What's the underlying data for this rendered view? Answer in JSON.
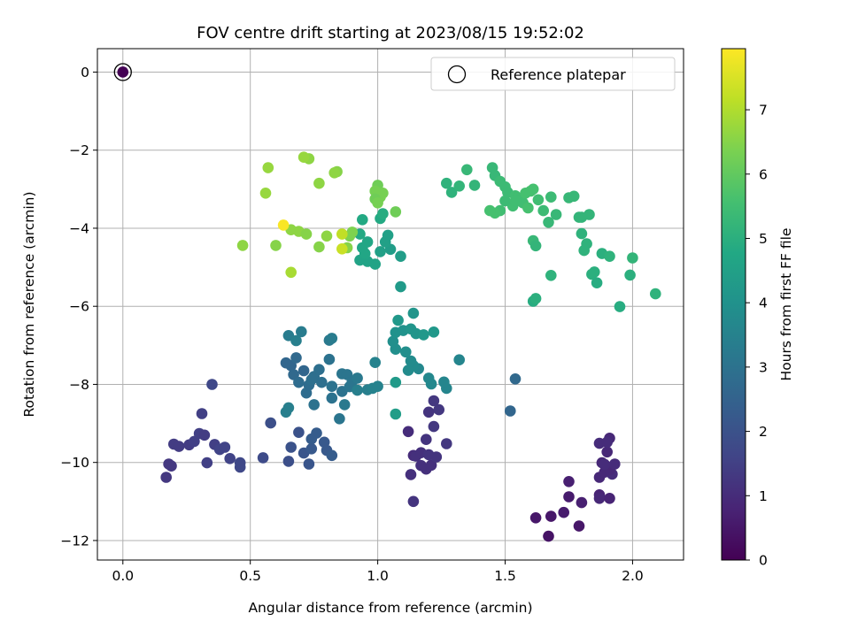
{
  "chart_data": {
    "type": "scatter",
    "title": "FOV centre drift starting at 2023/08/15 19:52:02",
    "xlabel": "Angular distance from reference (arcmin)",
    "ylabel": "Rotation from reference (arcmin)",
    "colorbar_label": "Hours from first FF file",
    "colormap": "viridis",
    "xlim": [
      -0.1,
      2.2
    ],
    "ylim": [
      -12.5,
      0.6
    ],
    "clim": [
      0,
      7.95
    ],
    "xticks": [
      0.0,
      0.5,
      1.0,
      1.5,
      2.0
    ],
    "xtick_labels": [
      "0.0",
      "0.5",
      "1.0",
      "1.5",
      "2.0"
    ],
    "yticks": [
      0,
      -2,
      -4,
      -6,
      -8,
      -10,
      -12
    ],
    "ytick_labels": [
      "0",
      "−2",
      "−4",
      "−6",
      "−8",
      "−10",
      "−12"
    ],
    "cticks": [
      0,
      1,
      2,
      3,
      4,
      5,
      6,
      7
    ],
    "ctick_labels": [
      "0",
      "1",
      "2",
      "3",
      "4",
      "5",
      "6",
      "7"
    ],
    "grid": true,
    "legend": {
      "position": "top-right",
      "label": "Reference platepar"
    },
    "reference_point": {
      "x": 0,
      "y": 0
    },
    "points": [
      [
        1.67,
        -11.89,
        0.4
      ],
      [
        1.62,
        -11.42,
        0.5
      ],
      [
        1.68,
        -11.38,
        0.5
      ],
      [
        1.73,
        -11.28,
        0.6
      ],
      [
        1.79,
        -11.63,
        0.5
      ],
      [
        1.75,
        -10.88,
        0.6
      ],
      [
        1.75,
        -10.49,
        0.7
      ],
      [
        1.8,
        -11.03,
        0.7
      ],
      [
        1.87,
        -10.83,
        0.8
      ],
      [
        1.87,
        -10.92,
        0.9
      ],
      [
        1.91,
        -10.92,
        0.8
      ],
      [
        1.87,
        -10.38,
        0.9
      ],
      [
        1.89,
        -10.25,
        0.9
      ],
      [
        1.92,
        -10.3,
        1.0
      ],
      [
        1.91,
        -10.19,
        0.9
      ],
      [
        1.93,
        -10.04,
        1.0
      ],
      [
        1.88,
        -10.01,
        0.9
      ],
      [
        1.89,
        -10.05,
        1.0
      ],
      [
        1.9,
        -9.73,
        0.9
      ],
      [
        1.87,
        -9.51,
        1.0
      ],
      [
        1.91,
        -9.38,
        0.9
      ],
      [
        1.9,
        -9.48,
        1.0
      ],
      [
        1.12,
        -9.21,
        1.0
      ],
      [
        1.14,
        -9.82,
        1.0
      ],
      [
        1.15,
        -9.84,
        1.1
      ],
      [
        1.17,
        -9.75,
        1.1
      ],
      [
        1.19,
        -9.41,
        1.2
      ],
      [
        1.2,
        -8.71,
        1.2
      ],
      [
        1.22,
        -8.42,
        1.3
      ],
      [
        1.24,
        -8.65,
        1.3
      ],
      [
        1.19,
        -10.17,
        1.1
      ],
      [
        1.17,
        -10.08,
        1.1
      ],
      [
        1.21,
        -10.07,
        1.1
      ],
      [
        1.13,
        -10.31,
        1.1
      ],
      [
        1.23,
        -9.86,
        1.2
      ],
      [
        1.2,
        -9.8,
        1.2
      ],
      [
        1.22,
        -9.08,
        1.3
      ],
      [
        1.27,
        -9.52,
        1.3
      ],
      [
        1.14,
        -11.0,
        1.2
      ],
      [
        0.17,
        -10.38,
        1.3
      ],
      [
        0.18,
        -10.04,
        1.3
      ],
      [
        0.19,
        -10.09,
        1.3
      ],
      [
        0.2,
        -9.53,
        1.4
      ],
      [
        0.22,
        -9.59,
        1.4
      ],
      [
        0.26,
        -9.55,
        1.4
      ],
      [
        0.28,
        -9.46,
        1.5
      ],
      [
        0.3,
        -9.26,
        1.5
      ],
      [
        0.31,
        -8.75,
        1.5
      ],
      [
        0.32,
        -9.3,
        1.4
      ],
      [
        0.33,
        -10.01,
        1.5
      ],
      [
        0.36,
        -9.54,
        1.5
      ],
      [
        0.38,
        -9.67,
        1.6
      ],
      [
        0.4,
        -9.61,
        1.6
      ],
      [
        0.42,
        -9.9,
        1.6
      ],
      [
        0.46,
        -10.12,
        1.7
      ],
      [
        0.46,
        -10.01,
        1.7
      ],
      [
        0.35,
        -8.0,
        1.7
      ],
      [
        0.55,
        -9.88,
        1.8
      ],
      [
        0.58,
        -8.99,
        1.9
      ],
      [
        0.65,
        -9.97,
        1.9
      ],
      [
        0.66,
        -9.61,
        2.0
      ],
      [
        0.69,
        -9.23,
        2.0
      ],
      [
        0.71,
        -9.76,
        2.1
      ],
      [
        0.73,
        -10.04,
        2.1
      ],
      [
        0.74,
        -9.65,
        2.2
      ],
      [
        0.79,
        -9.48,
        2.2
      ],
      [
        0.8,
        -9.69,
        2.2
      ],
      [
        0.82,
        -9.82,
        2.3
      ],
      [
        0.76,
        -9.25,
        2.3
      ],
      [
        0.74,
        -9.4,
        2.3
      ],
      [
        1.54,
        -7.86,
        2.7
      ],
      [
        1.52,
        -8.68,
        2.6
      ],
      [
        0.71,
        -7.65,
        2.6
      ],
      [
        0.66,
        -7.52,
        2.6
      ],
      [
        0.64,
        -7.45,
        2.6
      ],
      [
        0.68,
        -7.32,
        2.7
      ],
      [
        0.67,
        -7.75,
        2.7
      ],
      [
        0.69,
        -7.95,
        2.8
      ],
      [
        0.72,
        -8.22,
        2.8
      ],
      [
        0.73,
        -8.02,
        2.8
      ],
      [
        0.75,
        -7.8,
        2.9
      ],
      [
        0.77,
        -7.62,
        2.9
      ],
      [
        0.78,
        -7.95,
        2.9
      ],
      [
        0.74,
        -7.88,
        2.9
      ],
      [
        0.81,
        -7.36,
        3.0
      ],
      [
        0.82,
        -8.05,
        3.0
      ],
      [
        0.82,
        -8.35,
        3.0
      ],
      [
        0.86,
        -8.18,
        3.0
      ],
      [
        0.86,
        -7.73,
        3.1
      ],
      [
        0.88,
        -7.75,
        3.1
      ],
      [
        0.89,
        -8.06,
        3.1
      ],
      [
        0.9,
        -7.92,
        3.1
      ],
      [
        0.92,
        -7.84,
        3.2
      ],
      [
        0.87,
        -8.52,
        3.2
      ],
      [
        0.85,
        -8.88,
        3.1
      ],
      [
        0.75,
        -8.52,
        3.0
      ],
      [
        0.81,
        -6.87,
        3.2
      ],
      [
        0.82,
        -6.82,
        3.3
      ],
      [
        0.7,
        -6.65,
        3.3
      ],
      [
        0.65,
        -6.75,
        3.3
      ],
      [
        0.68,
        -6.88,
        3.4
      ],
      [
        0.64,
        -8.71,
        3.4
      ],
      [
        0.65,
        -8.6,
        3.4
      ],
      [
        0.96,
        -8.14,
        3.4
      ],
      [
        0.98,
        -8.1,
        3.5
      ],
      [
        1.0,
        -8.05,
        3.5
      ],
      [
        0.99,
        -7.44,
        3.5
      ],
      [
        0.92,
        -8.15,
        3.4
      ],
      [
        1.32,
        -7.37,
        3.6
      ],
      [
        1.27,
        -8.1,
        3.6
      ],
      [
        1.26,
        -7.94,
        3.6
      ],
      [
        1.21,
        -7.99,
        3.7
      ],
      [
        1.2,
        -7.84,
        3.7
      ],
      [
        1.16,
        -7.6,
        3.7
      ],
      [
        1.14,
        -7.52,
        3.8
      ],
      [
        1.12,
        -7.64,
        3.8
      ],
      [
        1.13,
        -7.4,
        3.8
      ],
      [
        1.11,
        -7.17,
        3.9
      ],
      [
        1.07,
        -7.1,
        3.9
      ],
      [
        1.06,
        -6.9,
        3.9
      ],
      [
        1.07,
        -6.67,
        4.0
      ],
      [
        1.1,
        -6.62,
        4.0
      ],
      [
        1.13,
        -6.58,
        4.1
      ],
      [
        1.14,
        -6.18,
        4.1
      ],
      [
        1.15,
        -6.7,
        4.1
      ],
      [
        1.18,
        -6.73,
        4.2
      ],
      [
        1.22,
        -6.66,
        4.2
      ],
      [
        1.08,
        -6.36,
        4.2
      ],
      [
        1.07,
        -7.95,
        4.3
      ],
      [
        1.07,
        -8.76,
        4.4
      ],
      [
        1.09,
        -5.5,
        4.3
      ],
      [
        1.09,
        -4.72,
        4.4
      ],
      [
        1.05,
        -4.54,
        4.4
      ],
      [
        1.03,
        -4.35,
        4.5
      ],
      [
        1.04,
        -4.18,
        4.5
      ],
      [
        1.01,
        -4.6,
        4.5
      ],
      [
        0.99,
        -4.92,
        4.6
      ],
      [
        0.96,
        -4.85,
        4.6
      ],
      [
        0.93,
        -4.82,
        4.6
      ],
      [
        0.94,
        -4.5,
        4.7
      ],
      [
        0.95,
        -4.65,
        4.7
      ],
      [
        0.96,
        -4.35,
        4.7
      ],
      [
        0.93,
        -4.15,
        4.8
      ],
      [
        0.94,
        -3.78,
        4.8
      ],
      [
        1.01,
        -3.75,
        4.8
      ],
      [
        1.02,
        -3.63,
        4.9
      ],
      [
        1.01,
        -3.12,
        4.9
      ],
      [
        1.29,
        -3.08,
        5.1
      ],
      [
        1.27,
        -2.85,
        5.1
      ],
      [
        1.32,
        -2.92,
        5.2
      ],
      [
        1.38,
        -2.9,
        5.2
      ],
      [
        1.35,
        -2.5,
        5.3
      ],
      [
        1.45,
        -2.45,
        5.3
      ],
      [
        1.46,
        -2.65,
        5.3
      ],
      [
        1.48,
        -2.8,
        5.4
      ],
      [
        1.5,
        -2.94,
        5.4
      ],
      [
        1.51,
        -3.08,
        5.4
      ],
      [
        1.54,
        -3.17,
        5.5
      ],
      [
        1.55,
        -3.22,
        5.5
      ],
      [
        1.57,
        -3.35,
        5.5
      ],
      [
        1.58,
        -3.1,
        5.6
      ],
      [
        1.6,
        -3.05,
        5.6
      ],
      [
        1.61,
        -3.0,
        5.6
      ],
      [
        1.59,
        -3.48,
        5.6
      ],
      [
        1.53,
        -3.43,
        5.5
      ],
      [
        1.48,
        -3.55,
        5.5
      ],
      [
        1.46,
        -3.61,
        5.6
      ],
      [
        1.5,
        -3.3,
        5.4
      ],
      [
        1.63,
        -3.27,
        5.5
      ],
      [
        1.65,
        -3.55,
        5.4
      ],
      [
        1.68,
        -3.2,
        5.4
      ],
      [
        1.7,
        -3.65,
        5.3
      ],
      [
        1.75,
        -3.22,
        5.3
      ],
      [
        1.77,
        -3.18,
        5.3
      ],
      [
        1.79,
        -3.72,
        5.2
      ],
      [
        1.8,
        -3.72,
        5.2
      ],
      [
        1.83,
        -3.65,
        5.2
      ],
      [
        1.8,
        -4.14,
        5.1
      ],
      [
        1.82,
        -4.4,
        5.1
      ],
      [
        1.81,
        -4.57,
        5.1
      ],
      [
        1.85,
        -5.12,
        5.0
      ],
      [
        1.84,
        -5.18,
        5.0
      ],
      [
        1.86,
        -5.4,
        4.9
      ],
      [
        1.88,
        -4.65,
        5.0
      ],
      [
        1.91,
        -4.72,
        5.1
      ],
      [
        1.95,
        -6.01,
        4.9
      ],
      [
        1.99,
        -5.2,
        5.0
      ],
      [
        2.0,
        -4.76,
        5.2
      ],
      [
        2.09,
        -5.68,
        5.1
      ],
      [
        1.61,
        -5.87,
        4.9
      ],
      [
        1.62,
        -5.8,
        5.0
      ],
      [
        1.68,
        -5.21,
        5.1
      ],
      [
        1.61,
        -4.32,
        5.3
      ],
      [
        1.62,
        -4.45,
        5.2
      ],
      [
        1.67,
        -3.85,
        5.3
      ],
      [
        1.44,
        -3.55,
        5.6
      ],
      [
        1.54,
        -3.3,
        5.5
      ],
      [
        1.07,
        -3.58,
        6.2
      ],
      [
        1.01,
        -3.2,
        6.3
      ],
      [
        1.0,
        -2.9,
        6.2
      ],
      [
        1.02,
        -3.1,
        6.3
      ],
      [
        0.99,
        -3.05,
        6.3
      ],
      [
        0.99,
        -3.25,
        6.2
      ],
      [
        1.0,
        -3.35,
        6.3
      ],
      [
        0.89,
        -4.2,
        6.4
      ],
      [
        0.9,
        -4.1,
        6.4
      ],
      [
        0.88,
        -4.5,
        6.5
      ],
      [
        0.84,
        -2.55,
        6.5
      ],
      [
        0.83,
        -2.58,
        6.6
      ],
      [
        0.77,
        -2.85,
        6.6
      ],
      [
        0.73,
        -2.22,
        6.6
      ],
      [
        0.71,
        -2.18,
        6.7
      ],
      [
        0.57,
        -2.45,
        6.7
      ],
      [
        0.56,
        -3.1,
        6.7
      ],
      [
        0.6,
        -4.44,
        6.5
      ],
      [
        0.66,
        -4.04,
        6.6
      ],
      [
        0.69,
        -4.08,
        6.6
      ],
      [
        0.72,
        -4.15,
        6.5
      ],
      [
        0.77,
        -4.48,
        6.5
      ],
      [
        0.8,
        -4.2,
        6.6
      ],
      [
        0.66,
        -5.13,
        6.9
      ],
      [
        0.47,
        -4.44,
        6.6
      ],
      [
        0.86,
        -4.15,
        7.2
      ],
      [
        0.86,
        -4.53,
        7.3
      ],
      [
        0.63,
        -3.92,
        7.9
      ]
    ]
  }
}
